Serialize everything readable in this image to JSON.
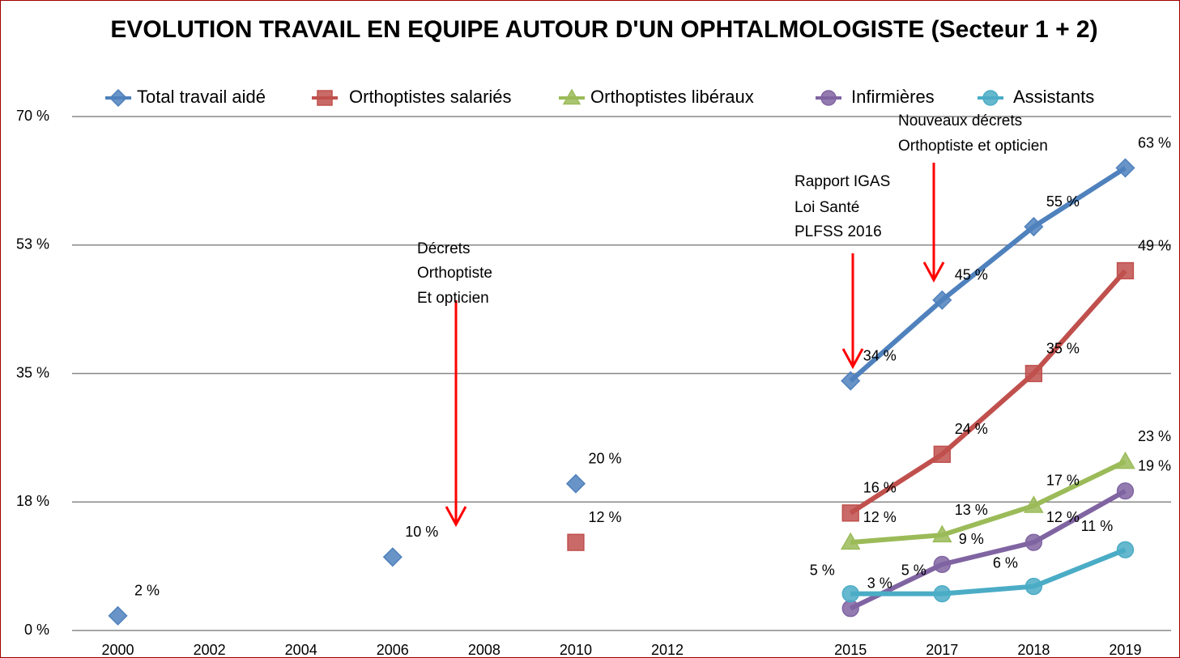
{
  "chart_data": {
    "type": "line",
    "title": "EVOLUTION TRAVAIL EN EQUIPE AUTOUR D'UN OPHTALMOLOGISTE (Secteur 1 + 2)",
    "categories": [
      "2000",
      "2002",
      "2004",
      "2006",
      "2008",
      "2010",
      "2012",
      null,
      "2015",
      "2017",
      "2018",
      "2019"
    ],
    "ylim": [
      0,
      70
    ],
    "yticks": [
      {
        "value": 0,
        "label": "0 %"
      },
      {
        "value": 17.5,
        "label": "18 %"
      },
      {
        "value": 35,
        "label": "35 %"
      },
      {
        "value": 52.5,
        "label": "53 %"
      },
      {
        "value": 70,
        "label": "70 %"
      }
    ],
    "grid": true,
    "legend": "top",
    "series": [
      {
        "name": "Total travail aidé",
        "color": "#4f81bd",
        "marker": "diamond",
        "values": [
          2,
          null,
          null,
          10,
          null,
          20,
          null,
          null,
          34,
          45,
          55,
          63
        ],
        "value_labels": [
          "2 %",
          null,
          null,
          "10 %",
          null,
          "20 %",
          null,
          null,
          "34 %",
          "45 %",
          "55 %",
          "63 %"
        ]
      },
      {
        "name": "Orthoptistes salariés",
        "color": "#c0504d",
        "marker": "square",
        "values": [
          null,
          null,
          null,
          null,
          null,
          12,
          null,
          null,
          16,
          24,
          35,
          49
        ],
        "value_labels": [
          null,
          null,
          null,
          null,
          null,
          "12 %",
          null,
          null,
          "16 %",
          "24 %",
          "35 %",
          "49 %"
        ]
      },
      {
        "name": "Orthoptistes libéraux",
        "color": "#9bbb59",
        "marker": "triangle",
        "values": [
          null,
          null,
          null,
          null,
          null,
          null,
          null,
          null,
          12,
          13,
          17,
          23
        ],
        "value_labels": [
          null,
          null,
          null,
          null,
          null,
          null,
          null,
          null,
          "12 %",
          "13 %",
          "17 %",
          "23 %"
        ]
      },
      {
        "name": "Infirmières",
        "color": "#8064a2",
        "marker": "circle",
        "values": [
          null,
          null,
          null,
          null,
          null,
          null,
          null,
          null,
          3,
          9,
          12,
          19
        ],
        "value_labels": [
          null,
          null,
          null,
          null,
          null,
          null,
          null,
          null,
          "3 %",
          "9 %",
          "12 %",
          "19 %"
        ]
      },
      {
        "name": "Assistants",
        "color": "#4bacc6",
        "marker": "circle",
        "values": [
          null,
          null,
          null,
          null,
          null,
          null,
          null,
          null,
          5,
          5,
          6,
          11
        ],
        "value_labels": [
          null,
          null,
          null,
          null,
          null,
          null,
          null,
          null,
          "5 %",
          "5 %",
          "6 %",
          "11 %"
        ]
      }
    ],
    "annotations": [
      [
        "Décrets",
        "Orthoptiste",
        "Et opticien"
      ],
      [
        "Rapport IGAS",
        "Loi Santé",
        "PLFSS 2016"
      ],
      [
        "Nouveaux décrets",
        "Orthoptiste et opticien"
      ]
    ]
  }
}
